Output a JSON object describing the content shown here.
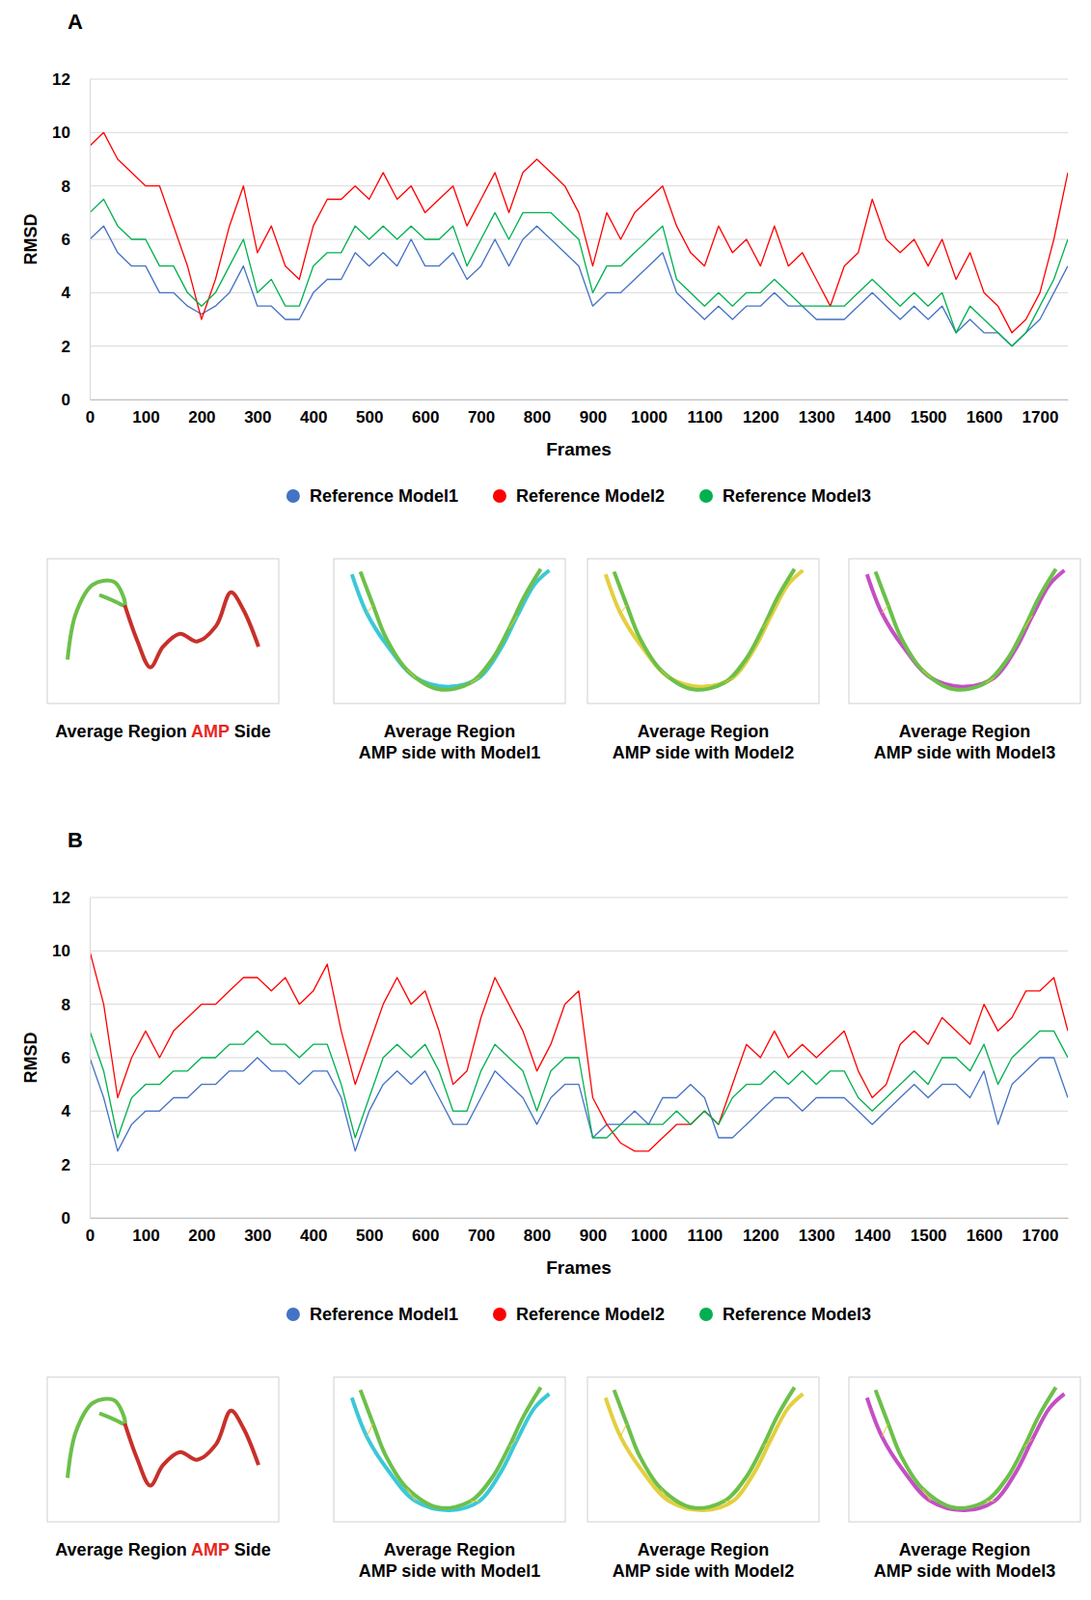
{
  "chart_data": [
    {
      "type": "line",
      "panel": "A",
      "xlabel": "Frames",
      "ylabel": "RMSD",
      "x": [
        0,
        25,
        50,
        75,
        100,
        125,
        150,
        175,
        200,
        225,
        250,
        275,
        300,
        325,
        350,
        375,
        400,
        425,
        450,
        475,
        500,
        525,
        550,
        575,
        600,
        625,
        650,
        675,
        700,
        725,
        750,
        775,
        800,
        825,
        850,
        875,
        900,
        925,
        950,
        975,
        1000,
        1025,
        1050,
        1075,
        1100,
        1125,
        1150,
        1175,
        1200,
        1225,
        1250,
        1275,
        1300,
        1325,
        1350,
        1375,
        1400,
        1425,
        1450,
        1475,
        1500,
        1525,
        1550,
        1575,
        1600,
        1625,
        1650,
        1675,
        1700,
        1725,
        1750
      ],
      "series": [
        {
          "name": "Reference Model1",
          "color": "#4472c4",
          "values": [
            6,
            6.5,
            5.5,
            5,
            5,
            4,
            4,
            3.5,
            3.2,
            3.5,
            4,
            5,
            3.5,
            3.5,
            3,
            3,
            4,
            4.5,
            4.5,
            5.5,
            5,
            5.5,
            5,
            6,
            5,
            5,
            5.5,
            4.5,
            5,
            6,
            5,
            6,
            6.5,
            6,
            5.5,
            5,
            3.5,
            4,
            4,
            4.5,
            5,
            5.5,
            4,
            3.5,
            3,
            3.5,
            3,
            3.5,
            3.5,
            4,
            3.5,
            3.5,
            3,
            3,
            3,
            3.5,
            4,
            3.5,
            3,
            3.5,
            3,
            3.5,
            2.5,
            3,
            2.5,
            2.5,
            2,
            2.5,
            3,
            4,
            5
          ]
        },
        {
          "name": "Reference Model2",
          "color": "#ff0000",
          "values": [
            9.5,
            10,
            9,
            8.5,
            8,
            8,
            6.5,
            5,
            3,
            4.5,
            6.5,
            8,
            5.5,
            6.5,
            5,
            4.5,
            6.5,
            7.5,
            7.5,
            8,
            7.5,
            8.5,
            7.5,
            8,
            7,
            7.5,
            8,
            6.5,
            7.5,
            8.5,
            7,
            8.5,
            9,
            8.5,
            8,
            7,
            5,
            7,
            6,
            7,
            7.5,
            8,
            6.5,
            5.5,
            5,
            6.5,
            5.5,
            6,
            5,
            6.5,
            5,
            5.5,
            4.5,
            3.5,
            5,
            5.5,
            7.5,
            6,
            5.5,
            6,
            5,
            6,
            4.5,
            5.5,
            4,
            3.5,
            2.5,
            3,
            4,
            6,
            8.5
          ]
        },
        {
          "name": "Reference Model3",
          "color": "#00b050",
          "values": [
            7,
            7.5,
            6.5,
            6,
            6,
            5,
            5,
            4,
            3.5,
            4,
            5,
            6,
            4,
            4.5,
            3.5,
            3.5,
            5,
            5.5,
            5.5,
            6.5,
            6,
            6.5,
            6,
            6.5,
            6,
            6,
            6.5,
            5,
            6,
            7,
            6,
            7,
            7,
            7,
            6.5,
            6,
            4,
            5,
            5,
            5.5,
            6,
            6.5,
            4.5,
            4,
            3.5,
            4,
            3.5,
            4,
            4,
            4.5,
            4,
            3.5,
            3.5,
            3.5,
            3.5,
            4,
            4.5,
            4,
            3.5,
            4,
            3.5,
            4,
            2.5,
            3.5,
            3,
            2.5,
            2,
            2.5,
            3.5,
            4.5,
            6
          ]
        }
      ],
      "xlim": [
        0,
        1750
      ],
      "ylim": [
        0,
        12
      ],
      "xticks": [
        0,
        100,
        200,
        300,
        400,
        500,
        600,
        700,
        800,
        900,
        1000,
        1100,
        1200,
        1300,
        1400,
        1500,
        1600,
        1700
      ],
      "yticks": [
        0,
        2,
        4,
        6,
        8,
        10,
        12
      ],
      "grid": true,
      "legend": "bottom",
      "structure_captions": [
        {
          "lines": [
            [
              {
                "text": "Average Region ",
                "color": "#000000"
              },
              {
                "text": "AMP",
                "color": "#e8261f"
              },
              {
                "text": " Side",
                "color": "#000000"
              }
            ]
          ]
        },
        {
          "lines": [
            [
              {
                "text": "Average Region",
                "color": "#000000"
              }
            ],
            [
              {
                "text": "AMP side with Model1",
                "color": "#000000"
              }
            ]
          ]
        },
        {
          "lines": [
            [
              {
                "text": "Average Region",
                "color": "#000000"
              }
            ],
            [
              {
                "text": "AMP side with Model2",
                "color": "#000000"
              }
            ]
          ]
        },
        {
          "lines": [
            [
              {
                "text": "Average Region",
                "color": "#000000"
              }
            ],
            [
              {
                "text": "AMP side with Model3",
                "color": "#000000"
              }
            ]
          ]
        }
      ]
    },
    {
      "type": "line",
      "panel": "B",
      "xlabel": "Frames",
      "ylabel": "RMSD",
      "x": [
        0,
        25,
        50,
        75,
        100,
        125,
        150,
        175,
        200,
        225,
        250,
        275,
        300,
        325,
        350,
        375,
        400,
        425,
        450,
        475,
        500,
        525,
        550,
        575,
        600,
        625,
        650,
        675,
        700,
        725,
        750,
        775,
        800,
        825,
        850,
        875,
        900,
        925,
        950,
        975,
        1000,
        1025,
        1050,
        1075,
        1100,
        1125,
        1150,
        1175,
        1200,
        1225,
        1250,
        1275,
        1300,
        1325,
        1350,
        1375,
        1400,
        1425,
        1450,
        1475,
        1500,
        1525,
        1550,
        1575,
        1600,
        1625,
        1650,
        1675,
        1700,
        1725,
        1750
      ],
      "series": [
        {
          "name": "Reference Model1",
          "color": "#4472c4",
          "values": [
            6,
            4.5,
            2.5,
            3.5,
            4,
            4,
            4.5,
            4.5,
            5,
            5,
            5.5,
            5.5,
            6,
            5.5,
            5.5,
            5,
            5.5,
            5.5,
            4.5,
            2.5,
            4,
            5,
            5.5,
            5,
            5.5,
            4.5,
            3.5,
            3.5,
            4.5,
            5.5,
            5,
            4.5,
            3.5,
            4.5,
            5,
            5,
            3,
            3.5,
            3.5,
            4,
            3.5,
            4.5,
            4.5,
            5,
            4.5,
            3,
            3,
            3.5,
            4,
            4.5,
            4.5,
            4,
            4.5,
            4.5,
            4.5,
            4,
            3.5,
            4,
            4.5,
            5,
            4.5,
            5,
            5,
            4.5,
            5.5,
            3.5,
            5,
            5.5,
            6,
            6,
            4.5
          ]
        },
        {
          "name": "Reference Model2",
          "color": "#ff0000",
          "values": [
            10,
            8,
            4.5,
            6,
            7,
            6,
            7,
            7.5,
            8,
            8,
            8.5,
            9,
            9,
            8.5,
            9,
            8,
            8.5,
            9.5,
            7,
            5,
            6.5,
            8,
            9,
            8,
            8.5,
            7,
            5,
            5.5,
            7.5,
            9,
            8,
            7,
            5.5,
            6.5,
            8,
            8.5,
            4.5,
            3.5,
            2.8,
            2.5,
            2.5,
            3,
            3.5,
            3.5,
            4,
            3.5,
            5,
            6.5,
            6,
            7,
            6,
            6.5,
            6,
            6.5,
            7,
            5.5,
            4.5,
            5,
            6.5,
            7,
            6.5,
            7.5,
            7,
            6.5,
            8,
            7,
            7.5,
            8.5,
            8.5,
            9,
            7
          ]
        },
        {
          "name": "Reference Model3",
          "color": "#00b050",
          "values": [
            7,
            5.5,
            3,
            4.5,
            5,
            5,
            5.5,
            5.5,
            6,
            6,
            6.5,
            6.5,
            7,
            6.5,
            6.5,
            6,
            6.5,
            6.5,
            5,
            3,
            4.5,
            6,
            6.5,
            6,
            6.5,
            5.5,
            4,
            4,
            5.5,
            6.5,
            6,
            5.5,
            4,
            5.5,
            6,
            6,
            3,
            3,
            3.5,
            3.5,
            3.5,
            3.5,
            4,
            3.5,
            4,
            3.5,
            4.5,
            5,
            5,
            5.5,
            5,
            5.5,
            5,
            5.5,
            5.5,
            4.5,
            4,
            4.5,
            5,
            5.5,
            5,
            6,
            6,
            5.5,
            6.5,
            5,
            6,
            6.5,
            7,
            7,
            6
          ]
        }
      ],
      "xlim": [
        0,
        1750
      ],
      "ylim": [
        0,
        12
      ],
      "xticks": [
        0,
        100,
        200,
        300,
        400,
        500,
        600,
        700,
        800,
        900,
        1000,
        1100,
        1200,
        1300,
        1400,
        1500,
        1600,
        1700
      ],
      "yticks": [
        0,
        2,
        4,
        6,
        8,
        10,
        12
      ],
      "grid": true,
      "legend": "bottom",
      "structure_captions": [
        {
          "lines": [
            [
              {
                "text": "Average Region ",
                "color": "#000000"
              },
              {
                "text": "AMP",
                "color": "#e8261f"
              },
              {
                "text": " Side",
                "color": "#000000"
              }
            ]
          ]
        },
        {
          "lines": [
            [
              {
                "text": "Average Region",
                "color": "#000000"
              }
            ],
            [
              {
                "text": "AMP side with Model1",
                "color": "#000000"
              }
            ]
          ]
        },
        {
          "lines": [
            [
              {
                "text": "Average Region",
                "color": "#000000"
              }
            ],
            [
              {
                "text": "AMP side with Model2",
                "color": "#000000"
              }
            ]
          ]
        },
        {
          "lines": [
            [
              {
                "text": "Average Region",
                "color": "#000000"
              }
            ],
            [
              {
                "text": "AMP side with Model3",
                "color": "#000000"
              }
            ]
          ]
        }
      ]
    }
  ]
}
